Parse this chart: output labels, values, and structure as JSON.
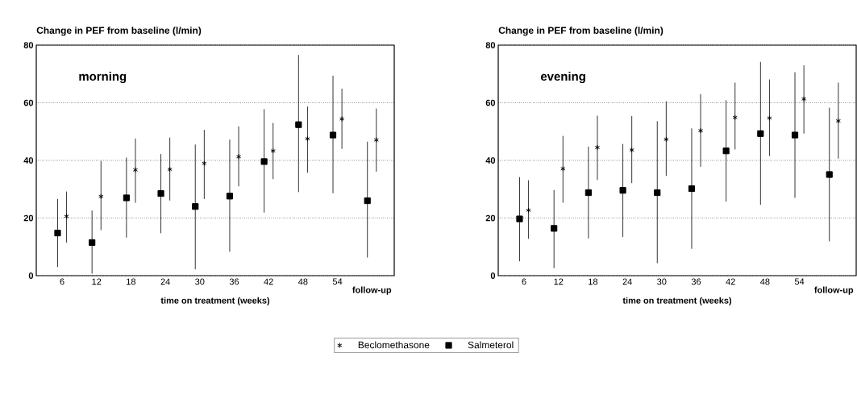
{
  "chart_data": [
    {
      "type": "scatter",
      "title": "Change in PEF from baseline (l/min)",
      "xlabel": "time on treatment (weeks)",
      "annotations": [
        "morning"
      ],
      "categories": [
        "6",
        "12",
        "18",
        "24",
        "30",
        "36",
        "42",
        "48",
        "54",
        "follow-up"
      ],
      "ylim": [
        0,
        80
      ],
      "yticks": [
        0,
        20,
        40,
        60,
        80
      ],
      "grid": "y",
      "legend": "bottom",
      "series": [
        {
          "name": "Beclomethasone",
          "color": "#000000",
          "marker": "cross",
          "values": [
            20.6,
            27.5,
            36.7,
            36.9,
            39,
            41.3,
            43.3,
            47.5,
            54.4,
            47.1
          ],
          "errors": [
            [
              11.5,
              29.2
            ],
            [
              15.8,
              39.8
            ],
            [
              25.3,
              47.6
            ],
            [
              26.1,
              47.9
            ],
            [
              26.6,
              50.6
            ],
            [
              31,
              51.8
            ],
            [
              33.5,
              53
            ],
            [
              35.7,
              58.7
            ],
            [
              44,
              64.9
            ],
            [
              36.1,
              58
            ]
          ]
        },
        {
          "name": "Salmeterol",
          "color": "#000000",
          "marker": "square",
          "values": [
            14.8,
            11.5,
            27,
            28.5,
            24,
            27.6,
            39.6,
            52.4,
            48.8,
            26
          ],
          "errors": [
            [
              3,
              26.6
            ],
            [
              0.7,
              22.6
            ],
            [
              13.2,
              41
            ],
            [
              14.7,
              42.2
            ],
            [
              2.2,
              45.5
            ],
            [
              8.3,
              47.2
            ],
            [
              21.9,
              57.8
            ],
            [
              29,
              76.6
            ],
            [
              28.6,
              69.4
            ],
            [
              6.3,
              46.5
            ]
          ]
        }
      ]
    },
    {
      "type": "scatter",
      "title": "Change in PEF from baseline (l/min)",
      "xlabel": "time on treatment (weeks)",
      "annotations": [
        "evening"
      ],
      "categories": [
        "6",
        "12",
        "18",
        "24",
        "30",
        "36",
        "42",
        "48",
        "54",
        "follow-up"
      ],
      "ylim": [
        0,
        80
      ],
      "yticks": [
        0,
        20,
        40,
        60,
        80
      ],
      "grid": "y",
      "series": [
        {
          "color": "#000000",
          "marker": "cross",
          "values": [
            22.7,
            37.1,
            44.5,
            43.6,
            47.3,
            50.3,
            54.9,
            54.7,
            61.3,
            53.7
          ],
          "errors": [
            [
              12.8,
              33.1
            ],
            [
              25.3,
              48.5
            ],
            [
              33.2,
              55.5
            ],
            [
              32.1,
              55.4
            ],
            [
              34.6,
              60.5
            ],
            [
              37.8,
              63
            ],
            [
              43.8,
              67
            ],
            [
              41.5,
              68.1
            ],
            [
              49.3,
              73
            ],
            [
              40.6,
              67
            ]
          ]
        },
        {
          "color": "#000000",
          "marker": "square",
          "values": [
            19.7,
            16.4,
            28.8,
            29.6,
            28.8,
            30.2,
            43.3,
            49.3,
            48.8,
            35.1
          ],
          "errors": [
            [
              5,
              34.2
            ],
            [
              2.6,
              29.7
            ],
            [
              12.9,
              44.8
            ],
            [
              13.4,
              45.7
            ],
            [
              4.3,
              53.6
            ],
            [
              9.3,
              51.1
            ],
            [
              25.7,
              60.9
            ],
            [
              24.6,
              74.2
            ],
            [
              27,
              70.6
            ],
            [
              11.9,
              58.3
            ]
          ]
        }
      ]
    }
  ]
}
